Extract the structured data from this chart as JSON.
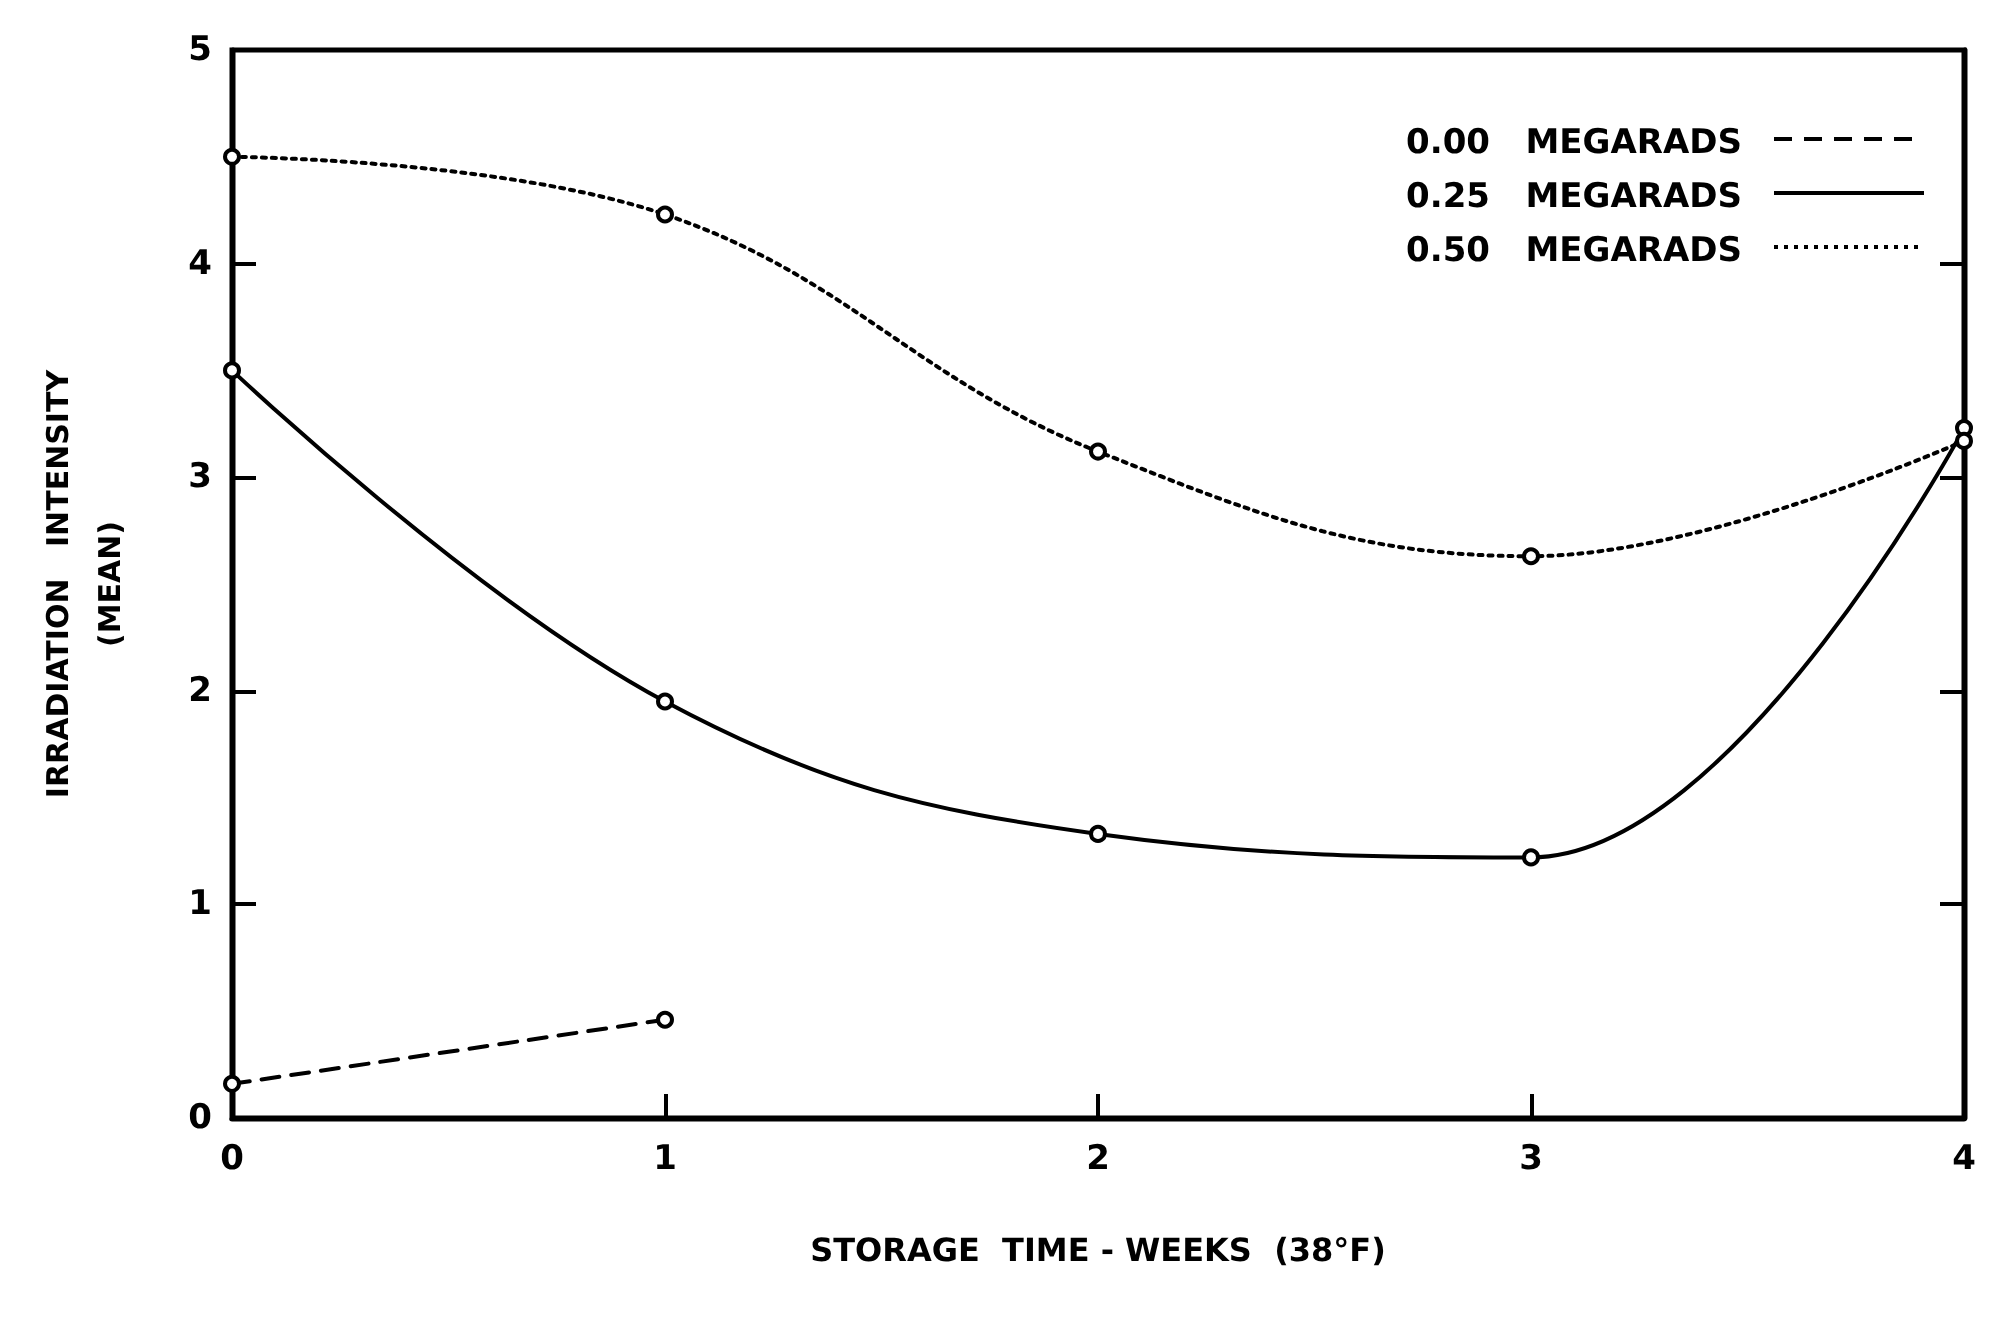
{
  "chart_data": {
    "type": "line",
    "xlabel": "STORAGE  TIME - WEEKS  (38°F)",
    "ylabel": "IRRADIATION   INTENSITY\n(MEAN)",
    "x": [
      0,
      1,
      2,
      3,
      4
    ],
    "xlim": [
      0,
      4
    ],
    "xticks": [
      0,
      1,
      2,
      3,
      4
    ],
    "ylim": [
      0,
      5
    ],
    "yticks": [
      0,
      1,
      2,
      3,
      4,
      5
    ],
    "grid": false,
    "legend": "top right",
    "marker": "circle",
    "series": [
      {
        "name": "0.00   MEGARADS",
        "color": "#000000",
        "line_style": "dashed",
        "values": [
          0.16,
          0.46,
          null,
          null,
          null
        ]
      },
      {
        "name": "0.25   MEGARADS",
        "color": "#000000",
        "line_style": "solid",
        "values": [
          3.5,
          1.95,
          1.33,
          1.22,
          3.23
        ]
      },
      {
        "name": "0.50   MEGARADS",
        "color": "#000000",
        "line_style": "dotted",
        "values": [
          4.5,
          4.23,
          3.12,
          2.63,
          3.17
        ]
      }
    ]
  }
}
